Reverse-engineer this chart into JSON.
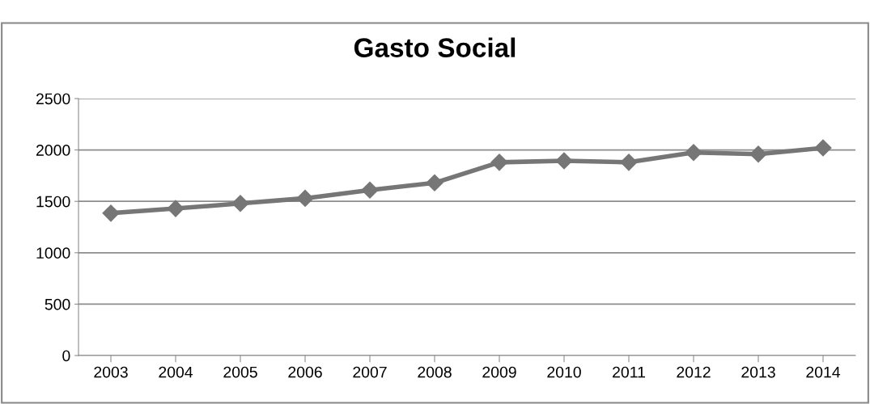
{
  "chart_data": {
    "type": "line",
    "title": "Gasto Social",
    "categories": [
      "2003",
      "2004",
      "2005",
      "2006",
      "2007",
      "2008",
      "2009",
      "2010",
      "2011",
      "2012",
      "2013",
      "2014"
    ],
    "series": [
      {
        "color": "#767676",
        "values": [
          1385,
          1430,
          1480,
          1530,
          1610,
          1680,
          1880,
          1895,
          1880,
          1975,
          1960,
          2020
        ]
      }
    ],
    "ylim": [
      0,
      2500
    ],
    "yticks": [
      0,
      500,
      1000,
      1500,
      2000,
      2500
    ],
    "grid": "y",
    "marker": "diamond",
    "line_style": "solid",
    "legend": false
  }
}
